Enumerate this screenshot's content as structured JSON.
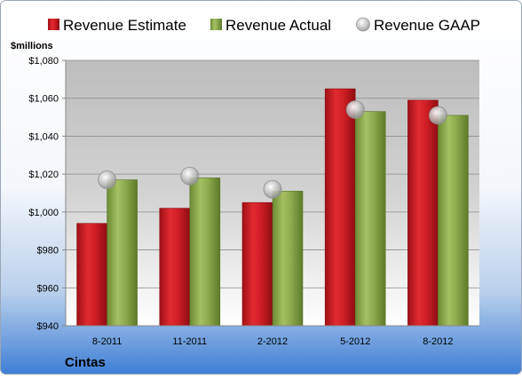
{
  "chart_data": {
    "type": "bar",
    "company": "Cintas",
    "ylabel": "$millions",
    "categories": [
      "8-2011",
      "11-2011",
      "2-2012",
      "5-2012",
      "8-2012"
    ],
    "series": [
      {
        "name": "Revenue Estimate",
        "kind": "bar",
        "color": "#d21f26",
        "values": [
          994,
          1002,
          1005,
          1065,
          1059
        ]
      },
      {
        "name": "Revenue Actual",
        "kind": "bar",
        "color": "#8aa84a",
        "values": [
          1017,
          1018,
          1011,
          1053,
          1051
        ]
      },
      {
        "name": "Revenue GAAP",
        "kind": "marker",
        "color": "#b0b0b0",
        "values": [
          1017,
          1019,
          1012,
          1054,
          1051
        ]
      }
    ],
    "ylim": [
      940,
      1080
    ],
    "yticks": [
      "$940",
      "$960",
      "$980",
      "$1,000",
      "$1,020",
      "$1,040",
      "$1,060",
      "$1,080"
    ],
    "ytick_values": [
      940,
      960,
      980,
      1000,
      1020,
      1040,
      1060,
      1080
    ],
    "grid": true,
    "legend_position": "top"
  }
}
